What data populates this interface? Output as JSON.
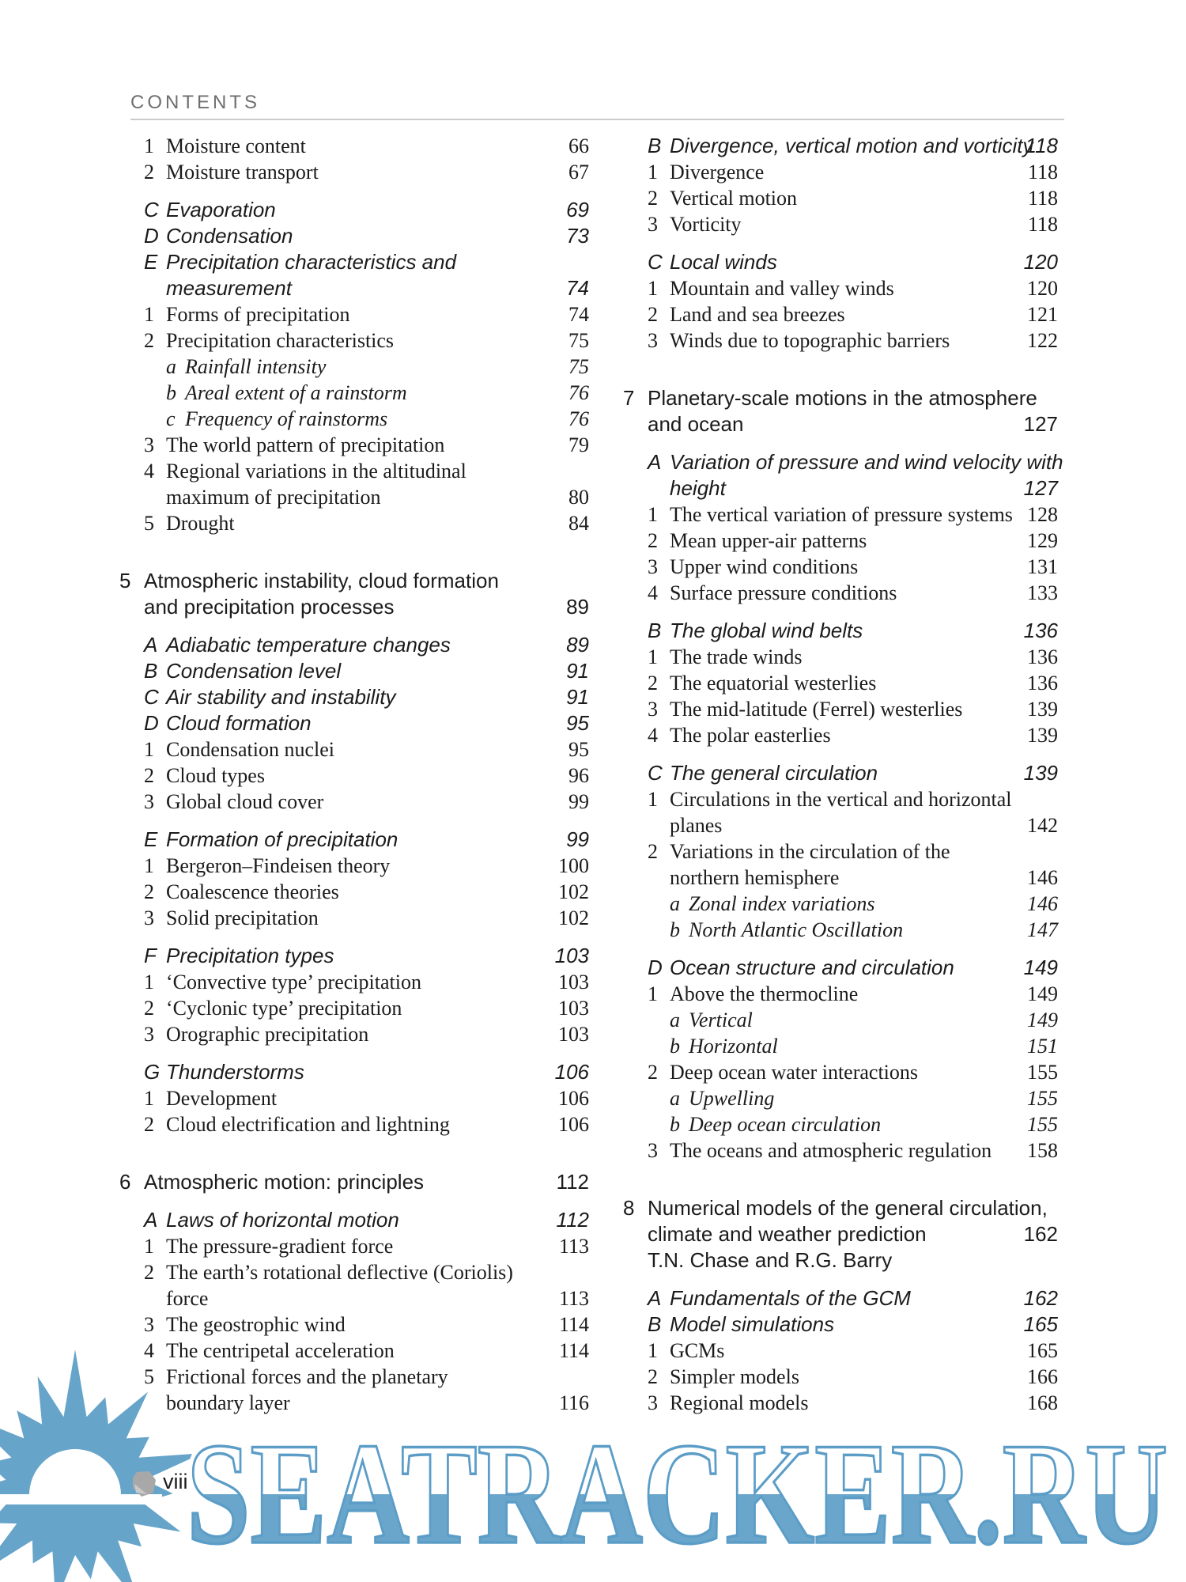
{
  "header": {
    "title": "CONTENTS"
  },
  "footer": {
    "page_number": "viii",
    "watermark": "SEATRACKER.RU",
    "logo_icon": "sun-icon",
    "pebble_icon": "pebble-icon"
  },
  "colors": {
    "watermark_blue": "#67a4c9",
    "watermark_fill_bottom": "#6aa6cb",
    "rule_gray": "#cbcbcb",
    "header_gray": "#6f6f6f",
    "text": "#1b1b1b"
  },
  "columns": {
    "left": [
      {
        "t": "item",
        "lv": "num",
        "label": "1",
        "lines": [
          {
            "text": "Moisture content",
            "page": "66"
          }
        ]
      },
      {
        "t": "item",
        "lv": "num",
        "label": "2",
        "lines": [
          {
            "text": "Moisture transport",
            "page": "67"
          }
        ]
      },
      {
        "t": "item",
        "lv": "letter",
        "label": "C",
        "gap": "small",
        "lines": [
          {
            "text": "Evaporation",
            "page": "69"
          }
        ]
      },
      {
        "t": "item",
        "lv": "letter",
        "label": "D",
        "lines": [
          {
            "text": "Condensation",
            "page": "73"
          }
        ]
      },
      {
        "t": "item",
        "lv": "letter",
        "label": "E",
        "lines": [
          {
            "text": "Precipitation characteristics and"
          },
          {
            "text": "measurement",
            "page": "74"
          }
        ]
      },
      {
        "t": "item",
        "lv": "num",
        "label": "1",
        "lines": [
          {
            "text": "Forms of precipitation",
            "page": "74"
          }
        ]
      },
      {
        "t": "item",
        "lv": "num",
        "label": "2",
        "lines": [
          {
            "text": "Precipitation characteristics",
            "page": "75"
          }
        ]
      },
      {
        "t": "item",
        "lv": "sub",
        "label": "a",
        "lines": [
          {
            "text": "Rainfall intensity",
            "page": "75"
          }
        ]
      },
      {
        "t": "item",
        "lv": "sub",
        "label": "b",
        "lines": [
          {
            "text": "Areal extent of a rainstorm",
            "page": "76"
          }
        ]
      },
      {
        "t": "item",
        "lv": "sub",
        "label": "c",
        "lines": [
          {
            "text": "Frequency of rainstorms",
            "page": "76"
          }
        ]
      },
      {
        "t": "item",
        "lv": "num",
        "label": "3",
        "lines": [
          {
            "text": "The world pattern of precipitation",
            "page": "79"
          }
        ]
      },
      {
        "t": "item",
        "lv": "num",
        "label": "4",
        "lines": [
          {
            "text": "Regional variations in the altitudinal"
          },
          {
            "text": "maximum of precipitation",
            "page": "80"
          }
        ]
      },
      {
        "t": "item",
        "lv": "num",
        "label": "5",
        "lines": [
          {
            "text": "Drought",
            "page": "84"
          }
        ]
      },
      {
        "t": "chapter",
        "label": "5",
        "gap": "big",
        "lines": [
          {
            "text": "Atmospheric instability, cloud formation"
          },
          {
            "text": "and precipitation processes",
            "page": "89"
          }
        ]
      },
      {
        "t": "item",
        "lv": "letter",
        "label": "A",
        "gap": "small",
        "lines": [
          {
            "text": "Adiabatic temperature changes",
            "page": "89"
          }
        ]
      },
      {
        "t": "item",
        "lv": "letter",
        "label": "B",
        "lines": [
          {
            "text": "Condensation level",
            "page": "91"
          }
        ]
      },
      {
        "t": "item",
        "lv": "letter",
        "label": "C",
        "lines": [
          {
            "text": "Air stability and instability",
            "page": "91"
          }
        ]
      },
      {
        "t": "item",
        "lv": "letter",
        "label": "D",
        "lines": [
          {
            "text": "Cloud formation",
            "page": "95"
          }
        ]
      },
      {
        "t": "item",
        "lv": "num",
        "label": "1",
        "lines": [
          {
            "text": "Condensation nuclei",
            "page": "95"
          }
        ]
      },
      {
        "t": "item",
        "lv": "num",
        "label": "2",
        "lines": [
          {
            "text": "Cloud types",
            "page": "96"
          }
        ]
      },
      {
        "t": "item",
        "lv": "num",
        "label": "3",
        "lines": [
          {
            "text": "Global cloud cover",
            "page": "99"
          }
        ]
      },
      {
        "t": "item",
        "lv": "letter",
        "label": "E",
        "gap": "small",
        "lines": [
          {
            "text": "Formation of precipitation",
            "page": "99"
          }
        ]
      },
      {
        "t": "item",
        "lv": "num",
        "label": "1",
        "lines": [
          {
            "text": "Bergeron–Findeisen theory",
            "page": "100"
          }
        ]
      },
      {
        "t": "item",
        "lv": "num",
        "label": "2",
        "lines": [
          {
            "text": "Coalescence theories",
            "page": "102"
          }
        ]
      },
      {
        "t": "item",
        "lv": "num",
        "label": "3",
        "lines": [
          {
            "text": "Solid precipitation",
            "page": "102"
          }
        ]
      },
      {
        "t": "item",
        "lv": "letter",
        "label": "F",
        "gap": "small",
        "lines": [
          {
            "text": "Precipitation types",
            "page": "103"
          }
        ]
      },
      {
        "t": "item",
        "lv": "num",
        "label": "1",
        "lines": [
          {
            "text": "‘Convective type’ precipitation",
            "page": "103"
          }
        ]
      },
      {
        "t": "item",
        "lv": "num",
        "label": "2",
        "lines": [
          {
            "text": "‘Cyclonic type’ precipitation",
            "page": "103"
          }
        ]
      },
      {
        "t": "item",
        "lv": "num",
        "label": "3",
        "lines": [
          {
            "text": "Orographic precipitation",
            "page": "103"
          }
        ]
      },
      {
        "t": "item",
        "lv": "letter",
        "label": "G",
        "gap": "small",
        "lines": [
          {
            "text": "Thunderstorms",
            "page": "106"
          }
        ]
      },
      {
        "t": "item",
        "lv": "num",
        "label": "1",
        "lines": [
          {
            "text": "Development",
            "page": "106"
          }
        ]
      },
      {
        "t": "item",
        "lv": "num",
        "label": "2",
        "lines": [
          {
            "text": "Cloud electrification and lightning",
            "page": "106"
          }
        ]
      },
      {
        "t": "chapter",
        "label": "6",
        "gap": "big",
        "lines": [
          {
            "text": "Atmospheric motion: principles",
            "page": "112"
          }
        ]
      },
      {
        "t": "item",
        "lv": "letter",
        "label": "A",
        "gap": "small",
        "lines": [
          {
            "text": "Laws of horizontal motion",
            "page": "112"
          }
        ]
      },
      {
        "t": "item",
        "lv": "num",
        "label": "1",
        "lines": [
          {
            "text": "The pressure-gradient force",
            "page": "113"
          }
        ]
      },
      {
        "t": "item",
        "lv": "num",
        "label": "2",
        "lines": [
          {
            "text": "The earth’s rotational deflective (Coriolis)"
          },
          {
            "text": "force",
            "page": "113"
          }
        ]
      },
      {
        "t": "item",
        "lv": "num",
        "label": "3",
        "lines": [
          {
            "text": "The geostrophic wind",
            "page": "114"
          }
        ]
      },
      {
        "t": "item",
        "lv": "num",
        "label": "4",
        "lines": [
          {
            "text": "The centripetal acceleration",
            "page": "114"
          }
        ]
      },
      {
        "t": "item",
        "lv": "num",
        "label": "5",
        "lines": [
          {
            "text": "Frictional forces and the planetary"
          },
          {
            "text": "boundary layer",
            "page": "116"
          }
        ]
      }
    ],
    "right": [
      {
        "t": "item",
        "lv": "letter",
        "label": "B",
        "lines": [
          {
            "text": "Divergence, vertical motion and vorticity",
            "page": "118"
          }
        ]
      },
      {
        "t": "item",
        "lv": "num",
        "label": "1",
        "lines": [
          {
            "text": "Divergence",
            "page": "118"
          }
        ]
      },
      {
        "t": "item",
        "lv": "num",
        "label": "2",
        "lines": [
          {
            "text": "Vertical motion",
            "page": "118"
          }
        ]
      },
      {
        "t": "item",
        "lv": "num",
        "label": "3",
        "lines": [
          {
            "text": "Vorticity",
            "page": "118"
          }
        ]
      },
      {
        "t": "item",
        "lv": "letter",
        "label": "C",
        "gap": "small",
        "lines": [
          {
            "text": "Local winds",
            "page": "120"
          }
        ]
      },
      {
        "t": "item",
        "lv": "num",
        "label": "1",
        "lines": [
          {
            "text": "Mountain and valley winds",
            "page": "120"
          }
        ]
      },
      {
        "t": "item",
        "lv": "num",
        "label": "2",
        "lines": [
          {
            "text": "Land and sea breezes",
            "page": "121"
          }
        ]
      },
      {
        "t": "item",
        "lv": "num",
        "label": "3",
        "lines": [
          {
            "text": "Winds due to topographic barriers",
            "page": "122"
          }
        ]
      },
      {
        "t": "chapter",
        "label": "7",
        "gap": "big",
        "lines": [
          {
            "text": "Planetary-scale motions in the atmosphere"
          },
          {
            "text": "and ocean",
            "page": "127"
          }
        ]
      },
      {
        "t": "item",
        "lv": "letter",
        "label": "A",
        "gap": "small",
        "lines": [
          {
            "text": "Variation of pressure and wind velocity with"
          },
          {
            "text": "height",
            "page": "127"
          }
        ]
      },
      {
        "t": "item",
        "lv": "num",
        "label": "1",
        "lines": [
          {
            "text": "The vertical variation of pressure systems",
            "page": "128"
          }
        ]
      },
      {
        "t": "item",
        "lv": "num",
        "label": "2",
        "lines": [
          {
            "text": "Mean upper-air patterns",
            "page": "129"
          }
        ]
      },
      {
        "t": "item",
        "lv": "num",
        "label": "3",
        "lines": [
          {
            "text": "Upper wind conditions",
            "page": "131"
          }
        ]
      },
      {
        "t": "item",
        "lv": "num",
        "label": "4",
        "lines": [
          {
            "text": "Surface pressure conditions",
            "page": "133"
          }
        ]
      },
      {
        "t": "item",
        "lv": "letter",
        "label": "B",
        "gap": "small",
        "lines": [
          {
            "text": "The global wind belts",
            "page": "136"
          }
        ]
      },
      {
        "t": "item",
        "lv": "num",
        "label": "1",
        "lines": [
          {
            "text": "The trade winds",
            "page": "136"
          }
        ]
      },
      {
        "t": "item",
        "lv": "num",
        "label": "2",
        "lines": [
          {
            "text": "The equatorial westerlies",
            "page": "136"
          }
        ]
      },
      {
        "t": "item",
        "lv": "num",
        "label": "3",
        "lines": [
          {
            "text": "The mid-latitude (Ferrel) westerlies",
            "page": "139"
          }
        ]
      },
      {
        "t": "item",
        "lv": "num",
        "label": "4",
        "lines": [
          {
            "text": "The polar easterlies",
            "page": "139"
          }
        ]
      },
      {
        "t": "item",
        "lv": "letter",
        "label": "C",
        "gap": "small",
        "lines": [
          {
            "text": "The general circulation",
            "page": "139"
          }
        ]
      },
      {
        "t": "item",
        "lv": "num",
        "label": "1",
        "lines": [
          {
            "text": "Circulations in the vertical and horizontal"
          },
          {
            "text": "planes",
            "page": "142"
          }
        ]
      },
      {
        "t": "item",
        "lv": "num",
        "label": "2",
        "lines": [
          {
            "text": "Variations in the circulation of the"
          },
          {
            "text": "northern hemisphere",
            "page": "146"
          }
        ]
      },
      {
        "t": "item",
        "lv": "sub",
        "label": "a",
        "lines": [
          {
            "text": "Zonal index variations",
            "page": "146"
          }
        ]
      },
      {
        "t": "item",
        "lv": "sub",
        "label": "b",
        "lines": [
          {
            "text": "North Atlantic Oscillation",
            "page": "147"
          }
        ]
      },
      {
        "t": "item",
        "lv": "letter",
        "label": "D",
        "gap": "small",
        "lines": [
          {
            "text": "Ocean structure and circulation",
            "page": "149"
          }
        ]
      },
      {
        "t": "item",
        "lv": "num",
        "label": "1",
        "lines": [
          {
            "text": "Above the thermocline",
            "page": "149"
          }
        ]
      },
      {
        "t": "item",
        "lv": "sub",
        "label": "a",
        "lines": [
          {
            "text": "Vertical",
            "page": "149"
          }
        ]
      },
      {
        "t": "item",
        "lv": "sub",
        "label": "b",
        "lines": [
          {
            "text": "Horizontal",
            "page": "151"
          }
        ]
      },
      {
        "t": "item",
        "lv": "num",
        "label": "2",
        "lines": [
          {
            "text": "Deep ocean water interactions",
            "page": "155"
          }
        ]
      },
      {
        "t": "item",
        "lv": "sub",
        "label": "a",
        "lines": [
          {
            "text": "Upwelling",
            "page": "155"
          }
        ]
      },
      {
        "t": "item",
        "lv": "sub",
        "label": "b",
        "lines": [
          {
            "text": "Deep ocean circulation",
            "page": "155"
          }
        ]
      },
      {
        "t": "item",
        "lv": "num",
        "label": "3",
        "lines": [
          {
            "text": "The oceans and atmospheric regulation",
            "page": "158"
          }
        ]
      },
      {
        "t": "chapter",
        "label": "8",
        "gap": "big",
        "lines": [
          {
            "text": "Numerical models of the general circulation,"
          },
          {
            "text": "climate and weather prediction",
            "page": "162"
          },
          {
            "text": "T.N. Chase and R.G. Barry"
          }
        ]
      },
      {
        "t": "item",
        "lv": "letter",
        "label": "A",
        "gap": "small",
        "lines": [
          {
            "text": "Fundamentals of the GCM",
            "page": "162"
          }
        ]
      },
      {
        "t": "item",
        "lv": "letter",
        "label": "B",
        "lines": [
          {
            "text": "Model simulations",
            "page": "165"
          }
        ]
      },
      {
        "t": "item",
        "lv": "num",
        "label": "1",
        "lines": [
          {
            "text": "GCMs",
            "page": "165"
          }
        ]
      },
      {
        "t": "item",
        "lv": "num",
        "label": "2",
        "lines": [
          {
            "text": "Simpler models",
            "page": "166"
          }
        ]
      },
      {
        "t": "item",
        "lv": "num",
        "label": "3",
        "lines": [
          {
            "text": "Regional models",
            "page": "168"
          }
        ]
      }
    ]
  }
}
